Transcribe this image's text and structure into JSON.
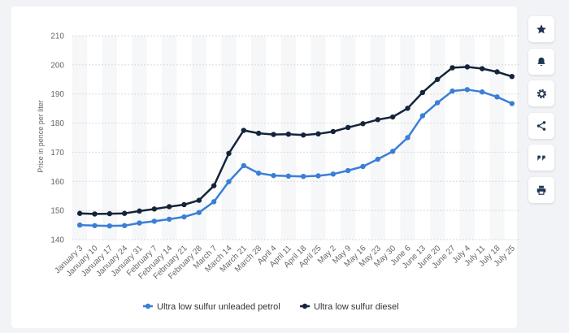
{
  "chart_data": {
    "type": "line",
    "title": "",
    "xlabel": "",
    "ylabel": "Price in pence per liter",
    "ylim": [
      140,
      210
    ],
    "yticks": [
      140,
      150,
      160,
      170,
      180,
      190,
      200,
      210
    ],
    "grid": true,
    "legend_position": "bottom",
    "categories": [
      "January 3",
      "January 10",
      "January 17",
      "January 24",
      "January 31",
      "February 7",
      "February 14",
      "February 21",
      "February 28",
      "March 7",
      "March 14",
      "March 21",
      "March 28",
      "April 4",
      "April 11",
      "April 18",
      "April 25",
      "May 2",
      "May 9",
      "May 16",
      "May 23",
      "May 30",
      "June 6",
      "June 13",
      "June 20",
      "June 27",
      "July 4",
      "July 11",
      "July 18",
      "July 25"
    ],
    "series": [
      {
        "name": "Ultra low sulfur unleaded petrol",
        "color": "#3a7fd5",
        "values": [
          145.0,
          144.8,
          144.7,
          144.8,
          145.7,
          146.3,
          147.0,
          147.8,
          149.3,
          153.0,
          159.9,
          165.4,
          162.8,
          162.0,
          161.8,
          161.7,
          161.9,
          162.5,
          163.7,
          165.1,
          167.6,
          170.3,
          175.0,
          182.5,
          187.0,
          191.0,
          191.5,
          190.7,
          189.0,
          186.7
        ]
      },
      {
        "name": "Ultra low sulfur diesel",
        "color": "#15243a",
        "values": [
          149.0,
          148.8,
          148.9,
          149.0,
          149.8,
          150.5,
          151.3,
          152.0,
          153.5,
          158.5,
          169.6,
          177.5,
          176.5,
          176.1,
          176.2,
          175.9,
          176.3,
          177.1,
          178.5,
          179.8,
          181.2,
          182.1,
          185.1,
          190.5,
          195.0,
          199.0,
          199.3,
          198.7,
          197.6,
          196.0
        ]
      }
    ]
  },
  "toolbar": {
    "buttons": [
      {
        "icon": "star-icon"
      },
      {
        "icon": "bell-icon"
      },
      {
        "icon": "gear-icon"
      },
      {
        "icon": "share-icon"
      },
      {
        "icon": "quote-icon"
      },
      {
        "icon": "print-icon"
      }
    ]
  }
}
